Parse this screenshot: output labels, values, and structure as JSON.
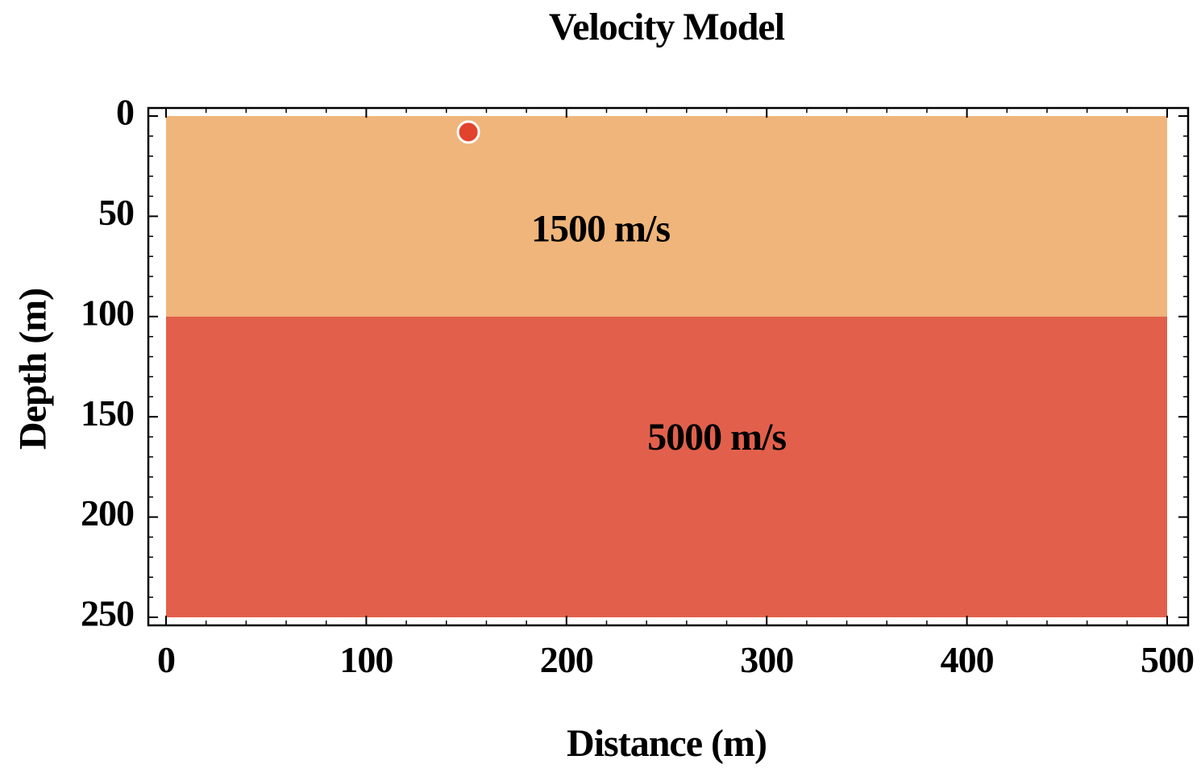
{
  "chart_data": {
    "type": "heatmap",
    "title": "Velocity Model",
    "xlabel": "Distance (m)",
    "ylabel": "Depth (m)",
    "xlim": [
      0,
      500
    ],
    "ylim": [
      0,
      250
    ],
    "y_inverted": true,
    "x_ticks": [
      0,
      100,
      200,
      300,
      400,
      500
    ],
    "y_ticks": [
      0,
      50,
      100,
      150,
      200,
      250
    ],
    "layers": [
      {
        "depth_top": 0,
        "depth_bottom": 100,
        "label": "1500 m/s",
        "label_x": 217,
        "label_y": 58,
        "color": "#EFB57A"
      },
      {
        "depth_top": 100,
        "depth_bottom": 250,
        "label": "5000 m/s",
        "label_x": 275,
        "label_y": 162,
        "color": "#E2604B"
      }
    ],
    "source_point": {
      "x": 151,
      "y": 8,
      "color": "#E2432C"
    }
  }
}
